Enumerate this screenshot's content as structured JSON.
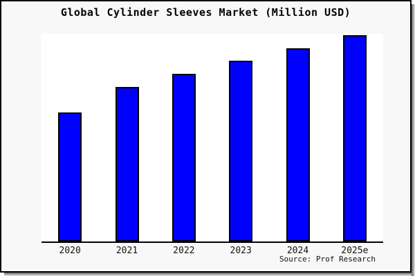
{
  "window": {
    "card_background": "#f8f8f8",
    "plot_background": "#ffffff",
    "border_color": "#000000"
  },
  "chart_data": {
    "type": "bar",
    "title": "Global Cylinder Sleeves Market (Million USD)",
    "categories": [
      "2020",
      "2021",
      "2022",
      "2023",
      "2024",
      "2025e"
    ],
    "values": [
      62.7,
      75.0,
      81.3,
      87.7,
      93.7,
      100.0
    ],
    "value_scale_note": "no y-axis labels shown; values are relative estimates normalized to 2025e = 100",
    "xlabel": "",
    "ylabel": "",
    "ylim": [
      0,
      100.7
    ],
    "grid": false,
    "legend": "none",
    "y_axis_visible": false,
    "bar_color": "#0000ff",
    "bar_edge_color": "#000000",
    "source_text": "Source: Prof Research"
  }
}
